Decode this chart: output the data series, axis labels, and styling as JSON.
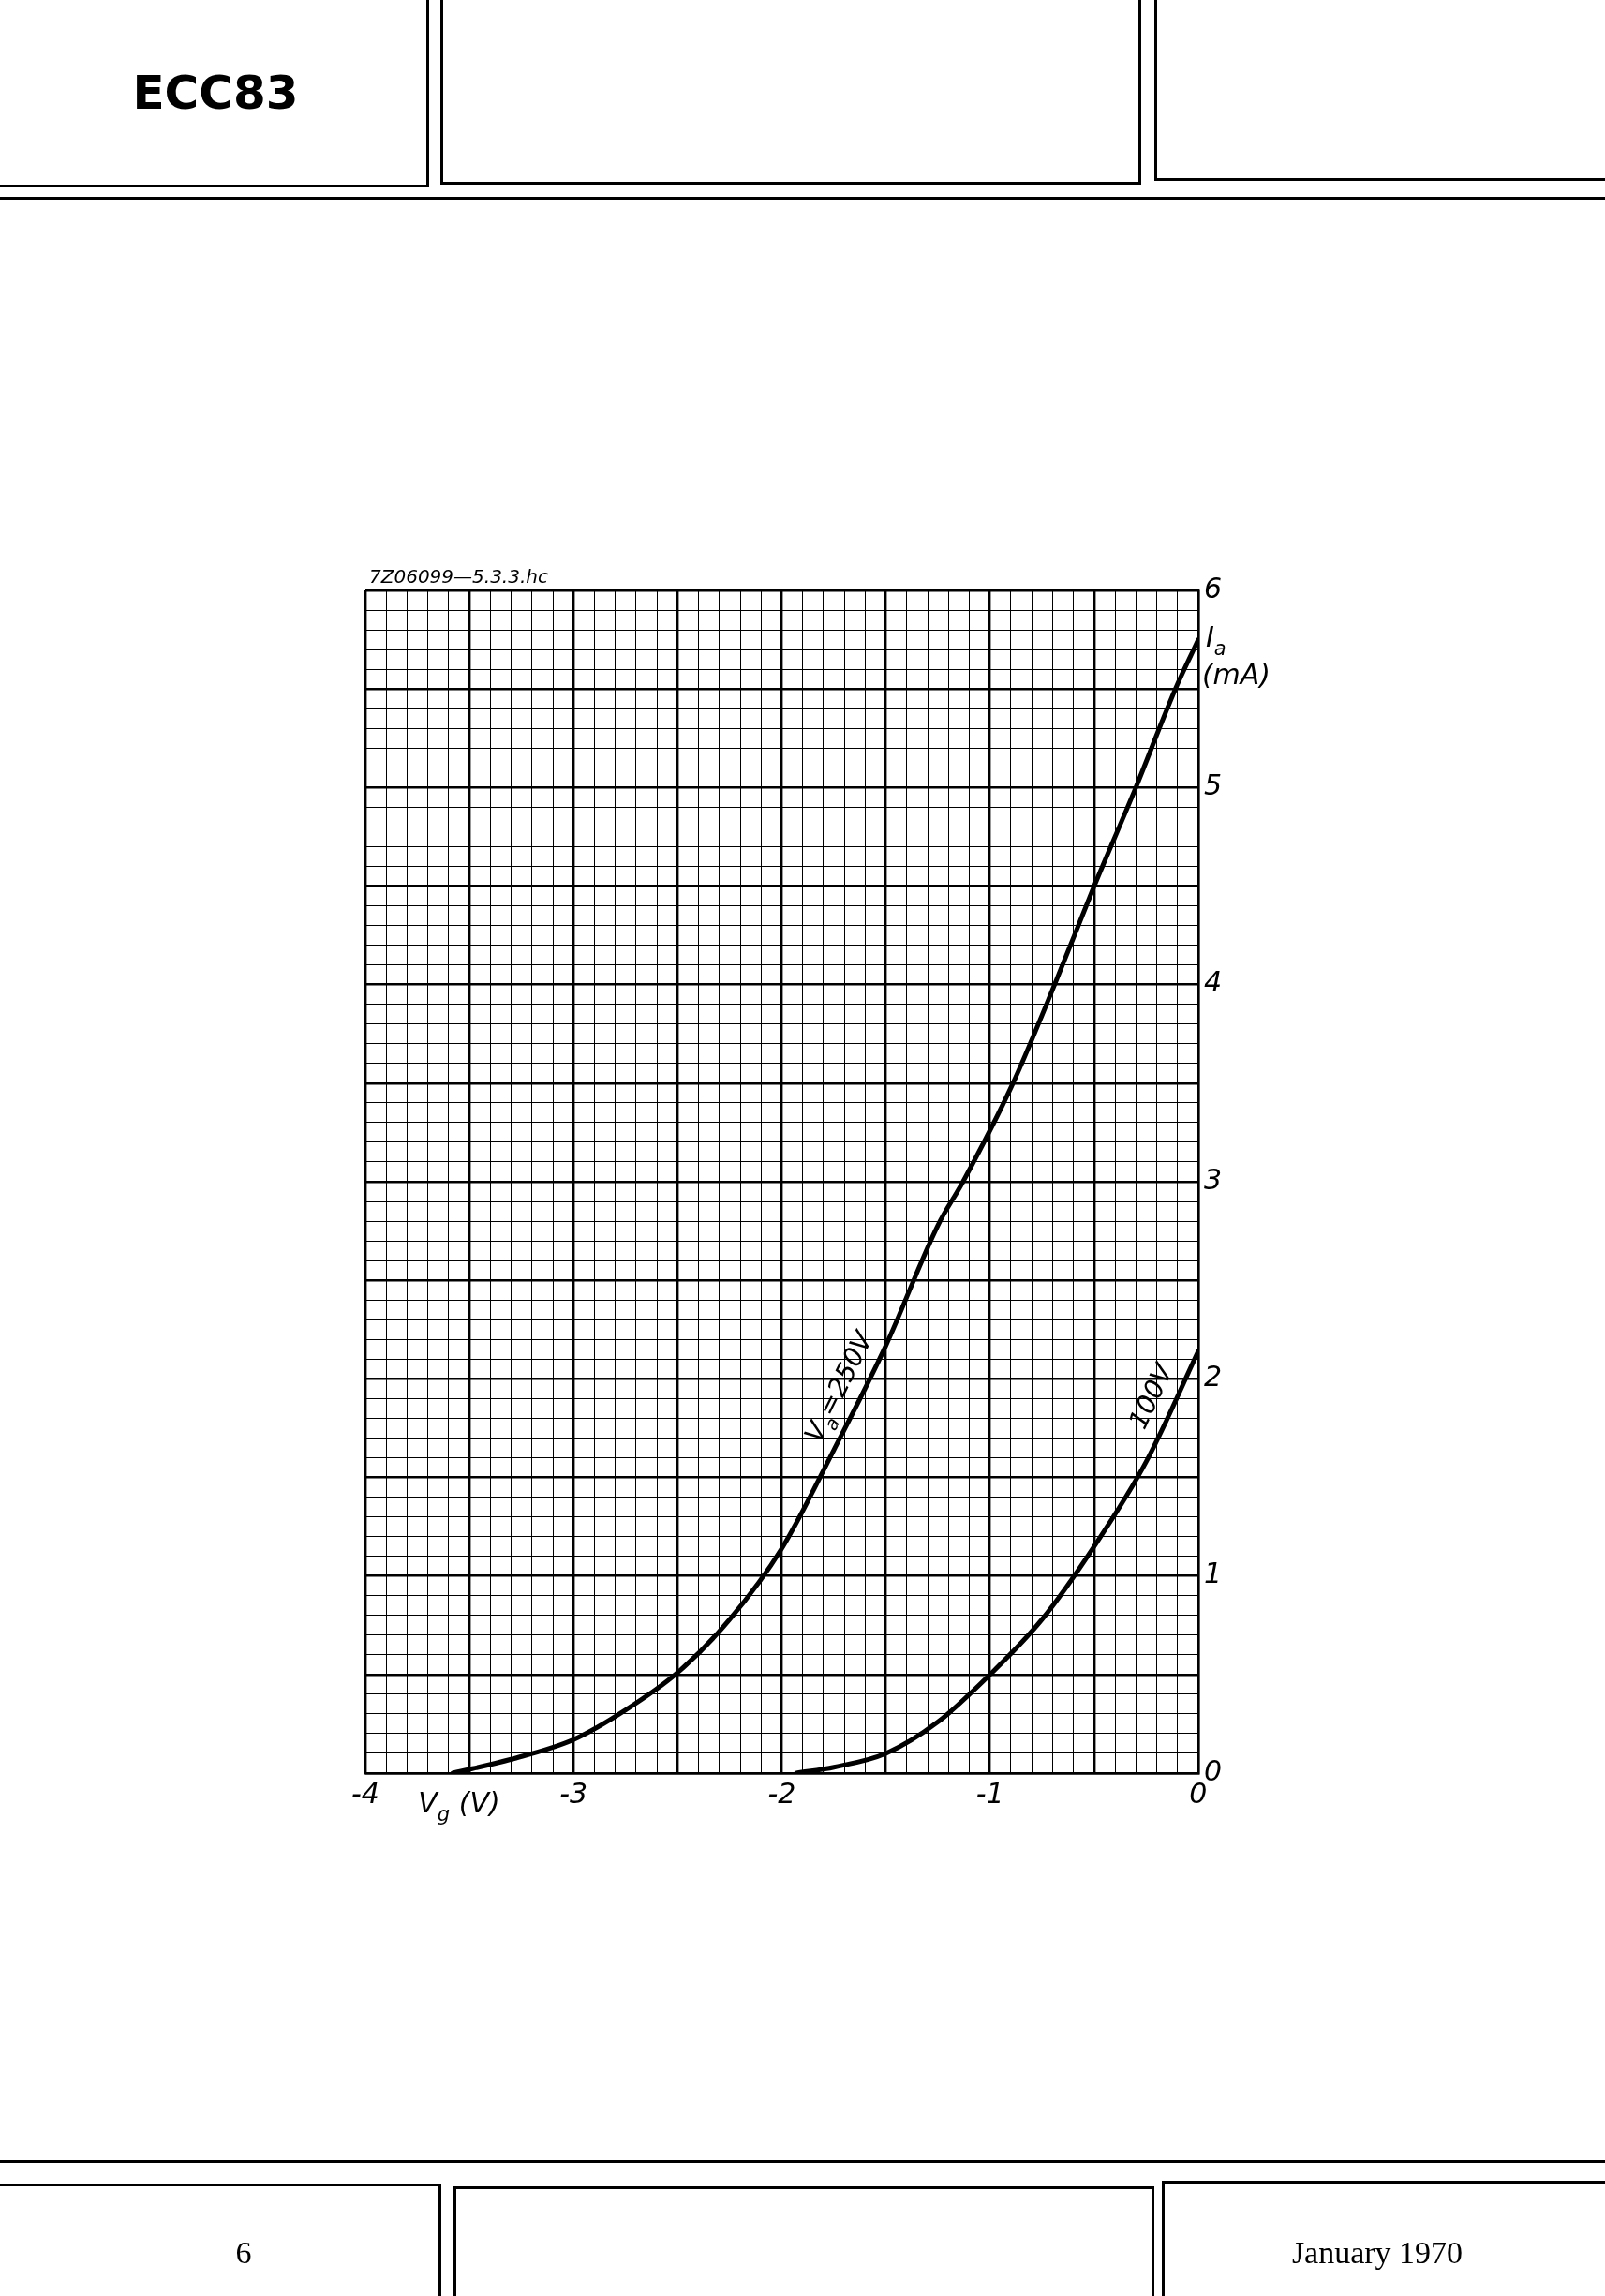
{
  "chart_data": {
    "type": "line",
    "title": "ECC83",
    "xlabel": "V$_{g}$ (V)",
    "ylabel": "I$_{a}$ (mA)",
    "annotations": [
      "7Z06099—5.3.3.hc",
      "6",
      "January 1970"
    ],
    "xlim": [
      -4,
      0
    ],
    "ylim": [
      0,
      6
    ],
    "xticks": [
      -4,
      {
        "value": -3.9,
        "label": null
      },
      {
        "value": -3.8,
        "label": null
      },
      {
        "value": -3.7,
        "label": null
      },
      {
        "value": -3.6,
        "label": null
      },
      {
        "value": -3.5,
        "label": null
      },
      {
        "value": -3.4,
        "label": null
      },
      {
        "value": -3.3,
        "label": null
      },
      {
        "value": -3.2,
        "label": null
      },
      {
        "value": -3.1,
        "label": null
      },
      -3,
      {
        "value": -2.9,
        "label": null
      },
      {
        "value": -2.8,
        "label": null
      },
      {
        "value": -2.7,
        "label": null
      },
      {
        "value": -2.6,
        "label": null
      },
      {
        "value": -2.5,
        "label": null
      },
      {
        "value": -2.4,
        "label": null
      },
      {
        "value": -2.3,
        "label": null
      },
      {
        "value": -2.2,
        "label": null
      },
      {
        "value": -2.1,
        "label": null
      },
      -2,
      {
        "value": -1.9,
        "label": null
      },
      {
        "value": -1.8,
        "label": null
      },
      {
        "value": -1.7,
        "label": null
      },
      {
        "value": -1.6,
        "label": null
      },
      {
        "value": -1.5,
        "label": null
      },
      {
        "value": -1.4,
        "label": null
      },
      {
        "value": -1.3,
        "label": null
      },
      {
        "value": -1.2,
        "label": null
      },
      {
        "value": -1.1,
        "label": null
      },
      -1,
      {
        "value": -0.9,
        "label": null
      },
      {
        "value": -0.8,
        "label": null
      },
      {
        "value": -0.7,
        "label": null
      },
      {
        "value": -0.6,
        "label": null
      },
      {
        "value": -0.5,
        "label": null
      },
      {
        "value": -0.4,
        "label": null
      },
      {
        "value": -0.3,
        "label": null
      },
      {
        "value": -0.2,
        "label": null
      },
      {
        "value": -0.1,
        "label": null
      },
      0
    ],
    "yticks": [
      0,
      {
        "value": 0.1,
        "label": null
      },
      {
        "value": 0.2,
        "label": null
      },
      {
        "value": 0.3,
        "label": null
      },
      {
        "value": 0.4,
        "label": null
      },
      {
        "value": 0.5,
        "label": null
      },
      {
        "value": 0.6,
        "label": null
      },
      {
        "value": 0.7,
        "label": null
      },
      {
        "value": 0.8,
        "label": null
      },
      {
        "value": 0.9,
        "label": null
      },
      1,
      {
        "value": 1.1,
        "label": null
      },
      {
        "value": 1.2,
        "label": null
      },
      {
        "value": 1.3,
        "label": null
      },
      {
        "value": 1.4,
        "label": null
      },
      {
        "value": 1.5,
        "label": null
      },
      {
        "value": 1.6,
        "label": null
      },
      {
        "value": 1.7,
        "label": null
      },
      {
        "value": 1.8,
        "label": null
      },
      {
        "value": 1.9,
        "label": null
      },
      2,
      {
        "value": 2.1,
        "label": null
      },
      {
        "value": 2.2,
        "label": null
      },
      {
        "value": 2.3,
        "label": null
      },
      {
        "value": 2.4,
        "label": null
      },
      {
        "value": 2.5,
        "label": null
      },
      {
        "value": 2.6,
        "label": null
      },
      {
        "value": 2.7,
        "label": null
      },
      {
        "value": 2.8,
        "label": null
      },
      {
        "value": 2.9,
        "label": null
      },
      3,
      {
        "value": 3.1,
        "label": null
      },
      {
        "value": 3.2,
        "label": null
      },
      {
        "value": 3.3,
        "label": null
      },
      {
        "value": 3.4,
        "label": null
      },
      {
        "value": 3.5,
        "label": null
      },
      {
        "value": 3.6,
        "label": null
      },
      {
        "value": 3.7,
        "label": null
      },
      {
        "value": 3.8,
        "label": null
      },
      {
        "value": 3.9,
        "label": null
      },
      4,
      {
        "value": 4.1,
        "label": null
      },
      {
        "value": 4.2,
        "label": null
      },
      {
        "value": 4.3,
        "label": null
      },
      {
        "value": 4.4,
        "label": null
      },
      {
        "value": 4.5,
        "label": null
      },
      {
        "value": 4.6,
        "label": null
      },
      {
        "value": 4.7,
        "label": null
      },
      {
        "value": 4.8,
        "label": null
      },
      {
        "value": 4.9,
        "label": null
      },
      5,
      {
        "value": 5.1,
        "label": null
      },
      {
        "value": 5.2,
        "label": null
      },
      {
        "value": 5.3,
        "label": null
      },
      {
        "value": 5.4,
        "label": null
      },
      {
        "value": 5.5,
        "label": null
      },
      {
        "value": 5.6,
        "label": null
      },
      {
        "value": 5.7,
        "label": null
      },
      {
        "value": 5.8,
        "label": null
      },
      {
        "value": 5.9,
        "label": null
      },
      6
    ],
    "grid": true,
    "series": [
      {
        "name": "V$_{a}$=250V",
        "color": "#000000",
        "x": [
          -3.58,
          -3.3,
          -3,
          -2.75,
          -2.5,
          -2.25,
          -2,
          -1.75,
          -1.5,
          -1.25,
          -1.13,
          -0.89,
          -0.69,
          -0.5,
          -0.3,
          -0.11,
          0
        ],
        "values": [
          0,
          0.07,
          0.17,
          0.32,
          0.51,
          0.78,
          1.14,
          1.64,
          2.17,
          2.78,
          3.0,
          3.5,
          4.0,
          4.5,
          5.0,
          5.5,
          5.75
        ]
      },
      {
        "name": "100V",
        "color": "#000000",
        "x": [
          -1.93,
          -1.75,
          -1.5,
          -1.25,
          -1,
          -0.75,
          -0.5,
          -0.25,
          0
        ],
        "values": [
          0,
          0.03,
          0.1,
          0.26,
          0.5,
          0.78,
          1.15,
          1.58,
          2.14
        ]
      }
    ]
  }
}
